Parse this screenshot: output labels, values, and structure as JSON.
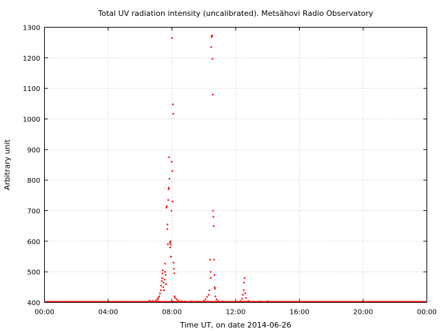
{
  "chart_data": {
    "type": "scatter",
    "title": "Total UV radiation intensity (uncalibrated). Metsähovi Radio Observatory",
    "xlabel": "Time UT, on date 2014-06-26",
    "ylabel": "Arbitrary unit",
    "xlim": [
      0,
      24
    ],
    "ylim": [
      400,
      1300
    ],
    "x_ticks": [
      {
        "value": 0,
        "label": "00:00"
      },
      {
        "value": 4,
        "label": "04:00"
      },
      {
        "value": 8,
        "label": "08:00"
      },
      {
        "value": 12,
        "label": "12:00"
      },
      {
        "value": 16,
        "label": "16:00"
      },
      {
        "value": 20,
        "label": "20:00"
      },
      {
        "value": 24,
        "label": "00:00"
      }
    ],
    "y_ticks": [
      400,
      500,
      600,
      700,
      800,
      900,
      1000,
      1100,
      1200,
      1300
    ],
    "grid": true,
    "color": "#ff0000",
    "series": [
      {
        "points": [
          [
            6.6,
            406
          ],
          [
            6.8,
            405
          ],
          [
            7.0,
            407
          ],
          [
            7.1,
            410
          ],
          [
            7.15,
            415
          ],
          [
            7.2,
            420
          ],
          [
            7.25,
            430
          ],
          [
            7.3,
            440
          ],
          [
            7.32,
            455
          ],
          [
            7.35,
            470
          ],
          [
            7.38,
            480
          ],
          [
            7.4,
            495
          ],
          [
            7.42,
            505
          ],
          [
            7.45,
            450
          ],
          [
            7.47,
            465
          ],
          [
            7.5,
            440
          ],
          [
            7.52,
            475
          ],
          [
            7.55,
            500
          ],
          [
            7.57,
            527
          ],
          [
            7.6,
            490
          ],
          [
            7.62,
            460
          ],
          [
            7.65,
            710
          ],
          [
            7.67,
            715
          ],
          [
            7.7,
            640
          ],
          [
            7.72,
            655
          ],
          [
            7.74,
            590
          ],
          [
            7.76,
            735
          ],
          [
            7.78,
            770
          ],
          [
            7.8,
            775
          ],
          [
            7.82,
            875
          ],
          [
            7.84,
            805
          ],
          [
            7.86,
            595
          ],
          [
            7.88,
            580
          ],
          [
            7.9,
            600
          ],
          [
            7.92,
            590
          ],
          [
            7.94,
            550
          ],
          [
            7.96,
            700
          ],
          [
            7.98,
            860
          ],
          [
            8.0,
            1265
          ],
          [
            8.02,
            830
          ],
          [
            8.04,
            730
          ],
          [
            8.06,
            1048
          ],
          [
            8.08,
            1017
          ],
          [
            8.1,
            530
          ],
          [
            8.12,
            510
          ],
          [
            8.14,
            495
          ],
          [
            8.16,
            420
          ],
          [
            8.2,
            415
          ],
          [
            8.3,
            410
          ],
          [
            8.4,
            406
          ],
          [
            8.6,
            404
          ],
          [
            8.8,
            403
          ],
          [
            9.2,
            403
          ],
          [
            9.6,
            403
          ],
          [
            10.0,
            405
          ],
          [
            10.1,
            410
          ],
          [
            10.2,
            418
          ],
          [
            10.3,
            425
          ],
          [
            10.35,
            440
          ],
          [
            10.4,
            540
          ],
          [
            10.42,
            500
          ],
          [
            10.44,
            480
          ],
          [
            10.46,
            1235
          ],
          [
            10.48,
            1268
          ],
          [
            10.5,
            1272
          ],
          [
            10.52,
            1273
          ],
          [
            10.54,
            1197
          ],
          [
            10.56,
            1080
          ],
          [
            10.58,
            700
          ],
          [
            10.6,
            680
          ],
          [
            10.62,
            650
          ],
          [
            10.64,
            540
          ],
          [
            10.66,
            490
          ],
          [
            10.68,
            450
          ],
          [
            10.7,
            445
          ],
          [
            10.72,
            420
          ],
          [
            10.8,
            410
          ],
          [
            10.9,
            405
          ],
          [
            11.2,
            403
          ],
          [
            12.3,
            405
          ],
          [
            12.4,
            412
          ],
          [
            12.45,
            425
          ],
          [
            12.5,
            440
          ],
          [
            12.52,
            465
          ],
          [
            12.55,
            480
          ],
          [
            12.6,
            430
          ],
          [
            12.65,
            415
          ],
          [
            12.8,
            405
          ],
          [
            13.5,
            403
          ],
          [
            14.0,
            404
          ],
          [
            14.5,
            402
          ]
        ]
      }
    ]
  }
}
